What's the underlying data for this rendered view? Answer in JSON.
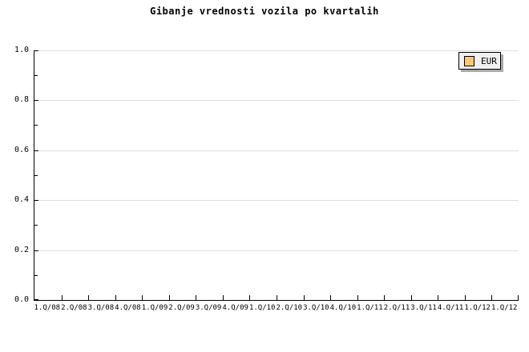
{
  "chart_data": {
    "type": "line",
    "title": "Gibanje vrednosti vozila po kvartalih",
    "categories": [
      "1.Q/08",
      "2.Q/08",
      "3.Q/08",
      "4.Q/08",
      "1.Q/09",
      "2.Q/09",
      "3.Q/09",
      "4.Q/09",
      "1.Q/10",
      "2.Q/10",
      "3.Q/10",
      "4.Q/10",
      "1.Q/11",
      "2.Q/11",
      "3.Q/11",
      "4.Q/11",
      "1.Q/12",
      "1.Q/12"
    ],
    "series": [
      {
        "name": "EUR",
        "color": "#FFC878",
        "values": []
      }
    ],
    "xlabel": "",
    "ylabel": "",
    "ylim": [
      0.0,
      1.0
    ],
    "y_tick_labels_top_to_bottom": [
      "1.0",
      "0.8",
      "0.6",
      "0.4",
      "0.2",
      "0.0"
    ],
    "y_major_tick_interval": 0.2,
    "y_minor_tick_interval": 0.1,
    "grid": true,
    "legend_position": "top-right",
    "colors": {
      "background": "#FFFFFF",
      "axis": "#000000",
      "grid": "#DDDDDD",
      "text": "#000000",
      "legend_background": "#F0F0F0",
      "legend_border": "#000000",
      "legend_shadow": "#AAAAAA"
    }
  }
}
